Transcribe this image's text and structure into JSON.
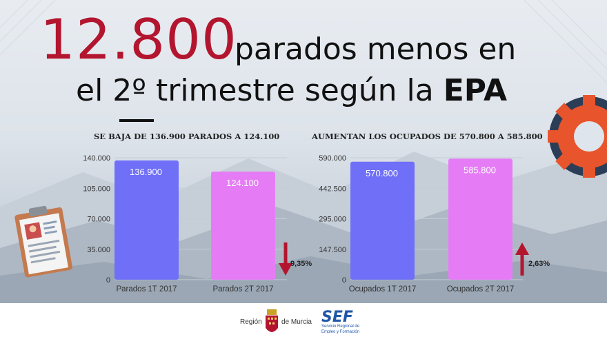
{
  "headline": {
    "number": "12.800",
    "line1": "parados menos en",
    "line2_prefix": "el 2º trimestre según la ",
    "line2_bold": "EPA"
  },
  "colors": {
    "accent_red": "#b3152f",
    "bar_1t": "#6f6ff8",
    "bar_2t": "#e57cf5",
    "arrow": "#b3152f",
    "gear": "#e8542b",
    "gear_dark": "#2c3e57"
  },
  "chart_data": [
    {
      "type": "bar",
      "title": "SE BAJA DE 136.900 PARADOS A 124.100",
      "categories": [
        "Parados 1T 2017",
        "Parados 2T 2017"
      ],
      "values": [
        136900,
        124100
      ],
      "value_labels": [
        "136.900",
        "124.100"
      ],
      "ylim": [
        0,
        140000
      ],
      "y_ticks": [
        "0",
        "35.000",
        "70.000",
        "105.000",
        "140.000"
      ],
      "y_tick_values": [
        0,
        35000,
        70000,
        105000,
        140000
      ],
      "change_label": "9,35%",
      "change_direction": "down",
      "grid": true
    },
    {
      "type": "bar",
      "title": "AUMENTAN LOS OCUPADOS DE 570.800 A 585.800",
      "categories": [
        "Ocupados 1T 2017",
        "Ocupados 2T 2017"
      ],
      "values": [
        570800,
        585800
      ],
      "value_labels": [
        "570.800",
        "585.800"
      ],
      "ylim": [
        0,
        590000
      ],
      "y_ticks": [
        "0",
        "147.500",
        "295.000",
        "442.500",
        "590.000"
      ],
      "y_tick_values": [
        0,
        147500,
        295000,
        442500,
        590000
      ],
      "change_label": "2,63%",
      "change_direction": "up",
      "grid": true
    }
  ],
  "footer": {
    "region_text_left": "Región",
    "region_text_right": "de Murcia",
    "sef_logo_text": "SEF",
    "sef_caption_line1": "Servicio Regional de",
    "sef_caption_line2": "Empleo y Formación"
  },
  "icons": [
    "clipboard-cv-icon",
    "gear-icon",
    "coat-of-arms-icon",
    "sef-logo-icon",
    "arrow-down-icon",
    "arrow-up-icon"
  ]
}
